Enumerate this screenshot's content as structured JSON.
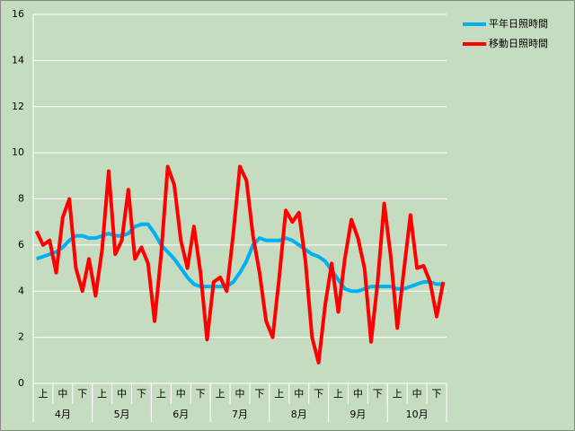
{
  "chart_data": {
    "type": "line",
    "categories": [
      null,
      "上",
      null,
      null,
      "中",
      null,
      null,
      "下",
      null,
      null,
      "上",
      null,
      null,
      "中",
      null,
      null,
      "下",
      null,
      null,
      "上",
      null,
      null,
      "中",
      null,
      null,
      "下",
      null,
      null,
      "上",
      null,
      null,
      "中",
      null,
      null,
      "下",
      null,
      null,
      "上",
      null,
      null,
      "中",
      null,
      null,
      "下",
      null,
      null,
      "上",
      null,
      null,
      "中",
      null,
      null,
      "下",
      null,
      null,
      "上",
      null,
      null,
      "中",
      null,
      null,
      "下",
      null
    ],
    "months": [
      "4月",
      "5月",
      "6月",
      "7月",
      "8月",
      "9月",
      "10月"
    ],
    "series": [
      {
        "name": "平年日照時間",
        "color": "#00b0f0",
        "values": [
          5.4,
          5.5,
          5.6,
          5.7,
          5.9,
          6.2,
          6.4,
          6.4,
          6.3,
          6.3,
          6.4,
          6.5,
          6.4,
          6.4,
          6.5,
          6.8,
          6.9,
          6.9,
          6.5,
          6.0,
          5.7,
          5.4,
          5.0,
          4.6,
          4.3,
          4.2,
          4.2,
          4.2,
          4.2,
          4.2,
          4.4,
          4.8,
          5.3,
          6.0,
          6.3,
          6.2,
          6.2,
          6.2,
          6.3,
          6.2,
          6.0,
          5.8,
          5.6,
          5.5,
          5.3,
          4.9,
          4.5,
          4.1,
          4.0,
          4.0,
          4.1,
          4.2,
          4.2,
          4.2,
          4.2,
          4.1,
          4.1,
          4.2,
          4.3,
          4.4,
          4.4,
          4.3,
          4.3
        ]
      },
      {
        "name": "移動日照時間",
        "color": "#ff0000",
        "values": [
          6.6,
          6.0,
          6.2,
          4.8,
          7.2,
          8.0,
          5.0,
          4.0,
          5.4,
          3.8,
          5.8,
          9.2,
          5.6,
          6.2,
          8.4,
          5.4,
          5.9,
          5.2,
          2.7,
          5.6,
          9.4,
          8.6,
          6.2,
          5.0,
          6.8,
          4.8,
          1.9,
          4.4,
          4.6,
          4.0,
          6.5,
          9.4,
          8.8,
          6.4,
          4.8,
          2.7,
          2.0,
          4.6,
          7.5,
          7.0,
          7.4,
          5.3,
          2.0,
          0.9,
          3.4,
          5.2,
          3.1,
          5.4,
          7.1,
          6.3,
          5.0,
          1.8,
          4.4,
          7.8,
          5.5,
          2.4,
          4.9,
          7.3,
          5.0,
          5.1,
          4.4,
          2.9,
          4.4
        ]
      }
    ],
    "ylim": [
      0,
      16
    ],
    "yticks": [
      0,
      2,
      4,
      6,
      8,
      10,
      12,
      14,
      16
    ],
    "grid": true,
    "legend": "right"
  }
}
